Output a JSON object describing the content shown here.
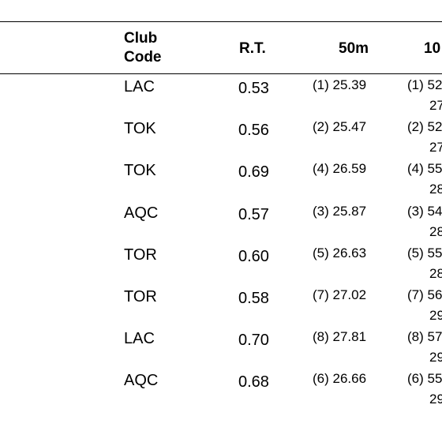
{
  "header": {
    "club_line1": "Club",
    "club_line2": "Code",
    "rt": "R.T.",
    "split50": "50m",
    "split100": "10"
  },
  "rows": [
    {
      "club": "LAC",
      "rt": "0.53",
      "split50": "(1) 25.39",
      "split100": "(1) 52",
      "split100_second": "27"
    },
    {
      "club": "TOK",
      "rt": "0.56",
      "split50": "(2) 25.47",
      "split100": "(2) 52",
      "split100_second": "27"
    },
    {
      "club": "TOK",
      "rt": "0.69",
      "split50": "(4) 26.59",
      "split100": "(4) 55",
      "split100_second": "28"
    },
    {
      "club": "AQC",
      "rt": "0.57",
      "split50": "(3) 25.87",
      "split100": "(3) 54",
      "split100_second": "28"
    },
    {
      "club": "TOR",
      "rt": "0.60",
      "split50": "(5) 26.63",
      "split100": "(5) 55",
      "split100_second": "28"
    },
    {
      "club": "TOR",
      "rt": "0.58",
      "split50": "(7) 27.02",
      "split100": "(7) 56",
      "split100_second": "29"
    },
    {
      "club": "LAC",
      "rt": "0.70",
      "split50": "(8) 27.81",
      "split100": "(8) 57",
      "split100_second": "29"
    },
    {
      "club": "AQC",
      "rt": "0.68",
      "split50": "(6) 26.66",
      "split100": "(6) 55",
      "split100_second": "29"
    }
  ]
}
